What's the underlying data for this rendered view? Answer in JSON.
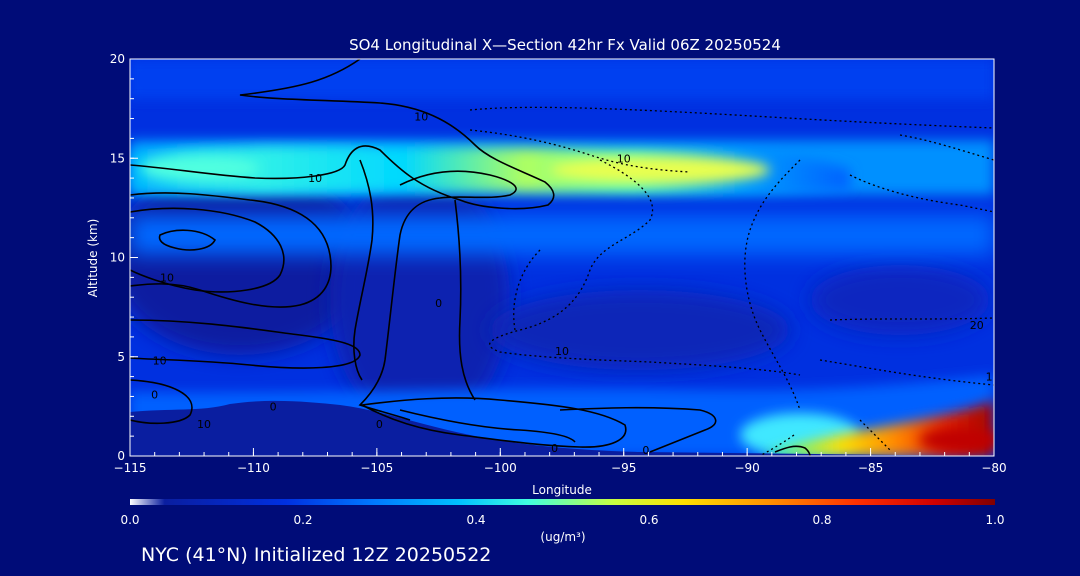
{
  "chart_data": {
    "type": "heatmap",
    "title": "SO4 Longitudinal X—Section 42hr  Fx Valid 06Z 20250524",
    "xlabel": "Longitude",
    "ylabel": "Altitude (km)",
    "x_range": [
      -115,
      -80
    ],
    "y_range": [
      0,
      20
    ],
    "x_ticks": [
      -115,
      -110,
      -105,
      -100,
      -95,
      -90,
      -85,
      -80
    ],
    "x_tick_labels": [
      "−115",
      "−110",
      "−105",
      "−100",
      "−95",
      "−90",
      "−85",
      "−80"
    ],
    "y_ticks": [
      0,
      5,
      10,
      15,
      20
    ],
    "y_tick_labels": [
      "0",
      "5",
      "10",
      "15",
      "20"
    ],
    "colorbar": {
      "label": "(ug/m³)",
      "range": [
        0.0,
        1.0
      ],
      "ticks": [
        0.0,
        0.2,
        0.4,
        0.6,
        0.8,
        1.0
      ],
      "tick_labels": [
        "0.0",
        "0.2",
        "0.4",
        "0.6",
        "0.8",
        "1.0"
      ]
    },
    "contour_labels": [
      {
        "text": "10",
        "lon": -113.5,
        "alt": 9.0
      },
      {
        "text": "10",
        "lon": -113.8,
        "alt": 4.8
      },
      {
        "text": "0",
        "lon": -114.0,
        "alt": 3.1
      },
      {
        "text": "10",
        "lon": -107.5,
        "alt": 14.0
      },
      {
        "text": "0",
        "lon": -109.2,
        "alt": 2.5
      },
      {
        "text": "10",
        "lon": -112.0,
        "alt": 1.6
      },
      {
        "text": "0",
        "lon": -104.9,
        "alt": 1.6
      },
      {
        "text": "0",
        "lon": -102.5,
        "alt": 7.7
      },
      {
        "text": "10",
        "lon": -103.2,
        "alt": 17.1
      },
      {
        "text": "10",
        "lon": -95.0,
        "alt": 15.0
      },
      {
        "text": "10",
        "lon": -97.5,
        "alt": 5.3
      },
      {
        "text": "0",
        "lon": -97.8,
        "alt": 0.4
      },
      {
        "text": "0",
        "lon": -94.1,
        "alt": 0.3
      },
      {
        "text": "20",
        "lon": -80.7,
        "alt": 6.6
      },
      {
        "text": "1",
        "lon": -80.2,
        "alt": 4.0
      }
    ],
    "grid": false,
    "legend": "colorbar-bottom"
  },
  "footer": {
    "caption": "NYC (41°N) Initialized 12Z 20250522"
  },
  "colors": {
    "background": "#000c78",
    "text": "#ffffff",
    "contour": "#000000"
  }
}
